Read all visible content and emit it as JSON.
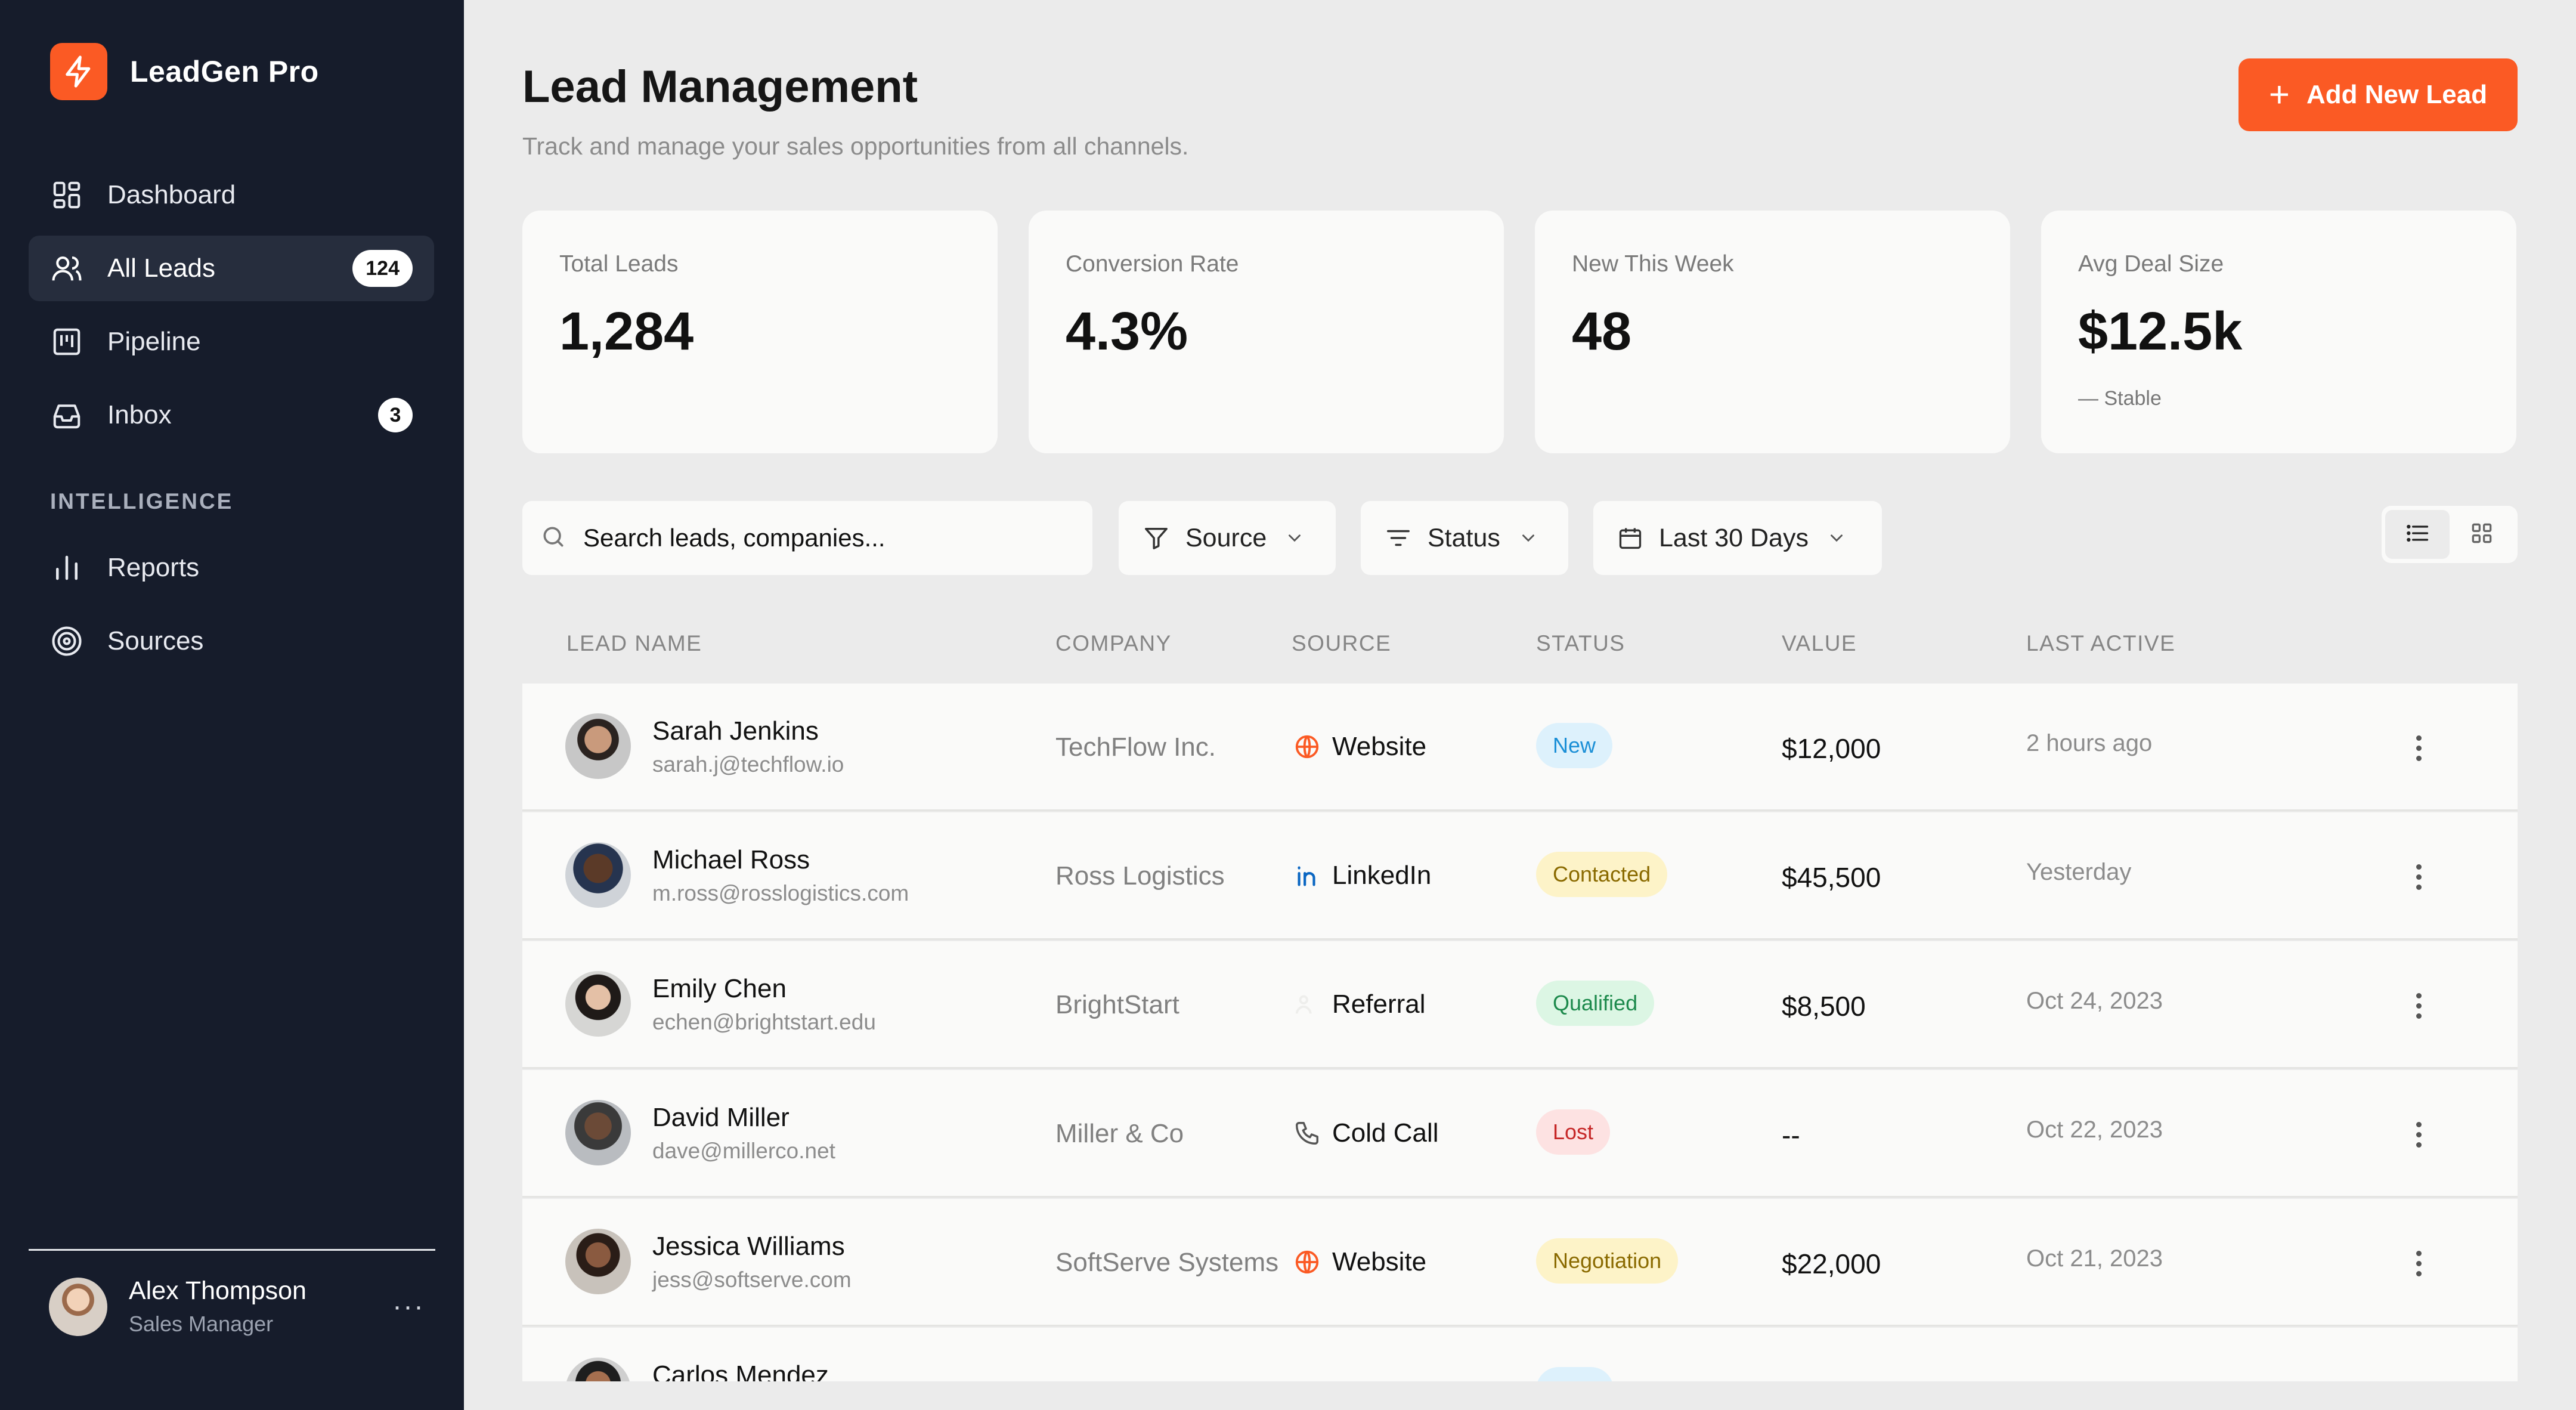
{
  "app": {
    "name": "LeadGen Pro"
  },
  "nav": {
    "items": [
      {
        "label": "Dashboard",
        "icon": "dashboard-grid-icon",
        "badge": null
      },
      {
        "label": "All Leads",
        "icon": "users-icon",
        "badge": "124",
        "active": true
      },
      {
        "label": "Pipeline",
        "icon": "pipeline-kanban-icon",
        "badge": null
      },
      {
        "label": "Inbox",
        "icon": "inbox-tray-icon",
        "badge": "3"
      }
    ],
    "section_label": "INTELLIGENCE",
    "intelligence_items": [
      {
        "label": "Reports",
        "icon": "bar-chart-icon"
      },
      {
        "label": "Sources",
        "icon": "target-icon"
      }
    ]
  },
  "user": {
    "name": "Alex Thompson",
    "role": "Sales Manager",
    "more": "···"
  },
  "header": {
    "title": "Lead Management",
    "subtitle": "Track and manage your sales opportunities from all channels.",
    "add_button": "Add New Lead"
  },
  "stats": [
    {
      "label": "Total Leads",
      "value": "1,284"
    },
    {
      "label": "Conversion Rate",
      "value": "4.3%"
    },
    {
      "label": "New This Week",
      "value": "48"
    },
    {
      "label": "Avg Deal Size",
      "value": "$12.5k",
      "note": "Stable",
      "note_icon": "—"
    }
  ],
  "filters": {
    "search_placeholder": "Search leads, companies...",
    "source": "Source",
    "status": "Status",
    "date_range": "Last 30 Days",
    "view_mode": "list"
  },
  "table": {
    "columns": [
      "LEAD NAME",
      "COMPANY",
      "SOURCE",
      "STATUS",
      "VALUE",
      "LAST ACTIVE"
    ],
    "rows": [
      {
        "name": "Sarah Jenkins",
        "email": "sarah.j@techflow.io",
        "company": "TechFlow Inc.",
        "source": "Website",
        "source_icon": "globe-icon",
        "status": "New",
        "status_color": "#1b8fd6",
        "status_bg": "#ddf1fc",
        "value": "$12,000",
        "last_active": "2 hours ago"
      },
      {
        "name": "Michael Ross",
        "email": "m.ross@rosslogistics.com",
        "company": "Ross Logistics",
        "source": "LinkedIn",
        "source_icon": "linkedin-icon",
        "status": "Contacted",
        "status_color": "#8a6a00",
        "status_bg": "#fdf3c8",
        "value": "$45,500",
        "last_active": "Yesterday"
      },
      {
        "name": "Emily Chen",
        "email": "echen@brightstart.edu",
        "company": "BrightStart",
        "source": "Referral",
        "source_icon": "referral-icon",
        "status": "Qualified",
        "status_color": "#1d8a4c",
        "status_bg": "#dcf6e4",
        "value": "$8,500",
        "last_active": "Oct 24, 2023"
      },
      {
        "name": "David Miller",
        "email": "dave@millerco.net",
        "company": "Miller & Co",
        "source": "Cold Call",
        "source_icon": "phone-icon",
        "status": "Lost",
        "status_color": "#c62828",
        "status_bg": "#fde2e2",
        "value": "--",
        "last_active": "Oct 22, 2023"
      },
      {
        "name": "Jessica Williams",
        "email": "jess@softserve.com",
        "company": "SoftServe Systems",
        "source": "Website",
        "source_icon": "globe-icon",
        "status": "Negotiation",
        "status_color": "#8a6a00",
        "status_bg": "#fdf3c8",
        "value": "$22,000",
        "last_active": "Oct 21, 2023"
      },
      {
        "name": "Carlos Mendez",
        "email": "",
        "company": "",
        "source": "",
        "source_icon": "",
        "status": "",
        "status_color": "#1b8fd6",
        "status_bg": "#ddf1fc",
        "value": "",
        "last_active": ""
      }
    ]
  },
  "colors": {
    "accent": "#fb5a24",
    "sidebar_bg": "#161c2b",
    "page_bg": "#ebebeb",
    "card_bg": "#fafaf9"
  }
}
